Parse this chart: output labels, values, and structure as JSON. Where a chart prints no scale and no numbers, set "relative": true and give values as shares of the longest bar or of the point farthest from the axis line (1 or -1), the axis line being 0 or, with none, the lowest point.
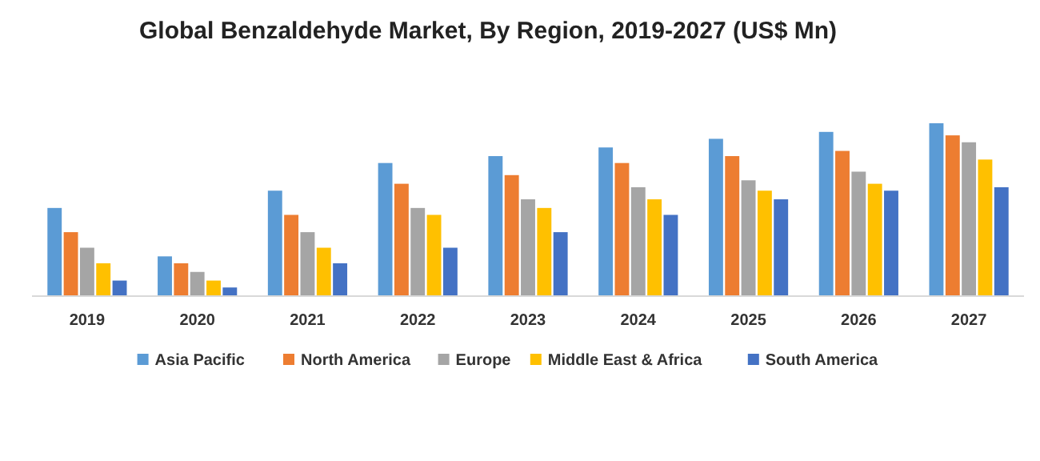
{
  "chart_data": {
    "type": "bar",
    "title": "Global Benzaldehyde Market, By Region, 2019-2027 (US$ Mn)",
    "relative": true,
    "legend": "bottom",
    "categories": [
      "2019",
      "2020",
      "2021",
      "2022",
      "2023",
      "2024",
      "2025",
      "2026",
      "2027"
    ],
    "series": [
      {
        "name": "Asia Pacific",
        "color": "#5b9bd5",
        "values": [
          0.51,
          0.23,
          0.61,
          0.77,
          0.81,
          0.86,
          0.91,
          0.95,
          1
        ]
      },
      {
        "name": "North America",
        "color": "#ed7d31",
        "values": [
          0.37,
          0.19,
          0.47,
          0.65,
          0.7,
          0.77,
          0.81,
          0.84,
          0.93
        ]
      },
      {
        "name": "Europe",
        "color": "#a5a5a5",
        "values": [
          0.28,
          0.14,
          0.37,
          0.51,
          0.56,
          0.63,
          0.67,
          0.72,
          0.89
        ]
      },
      {
        "name": "Middle East & Africa",
        "color": "#ffc000",
        "values": [
          0.19,
          0.09,
          0.28,
          0.47,
          0.51,
          0.56,
          0.61,
          0.65,
          0.79
        ]
      },
      {
        "name": "South America",
        "color": "#4472c4",
        "values": [
          0.09,
          0.05,
          0.19,
          0.28,
          0.37,
          0.47,
          0.56,
          0.61,
          0.63
        ]
      }
    ]
  }
}
